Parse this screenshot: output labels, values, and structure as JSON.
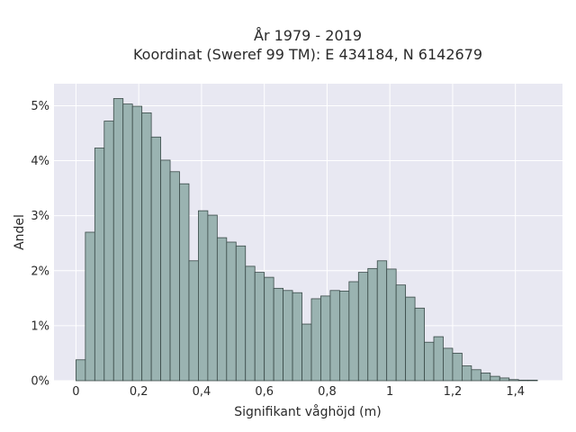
{
  "chart_data": {
    "type": "histogram",
    "title": "År 1979 - 2019",
    "subtitle": "Koordinat (Sweref 99 TM): E 434184, N 6142679",
    "xlabel": "Signifikant våghöjd (m)",
    "ylabel": "Andel",
    "xlim": [
      -0.07,
      1.55
    ],
    "ylim": [
      0,
      5.4
    ],
    "x_ticks": [
      0,
      0.2,
      0.4,
      0.6,
      0.8,
      1.0,
      1.2,
      1.4
    ],
    "x_tick_labels": [
      "0",
      "0,2",
      "0,4",
      "0,6",
      "0,8",
      "1",
      "1,2",
      "1,4"
    ],
    "y_ticks": [
      0,
      1,
      2,
      3,
      4,
      5
    ],
    "y_tick_labels": [
      "0%",
      "1%",
      "2%",
      "3%",
      "4%",
      "5%"
    ],
    "bin_width": 0.03,
    "bin_start": 0.0,
    "values": [
      0.38,
      2.7,
      4.23,
      4.72,
      5.13,
      5.03,
      4.99,
      4.87,
      4.43,
      4.01,
      3.8,
      3.58,
      2.18,
      3.09,
      3.01,
      2.6,
      2.52,
      2.45,
      2.08,
      1.97,
      1.88,
      1.68,
      1.64,
      1.6,
      1.03,
      1.49,
      1.54,
      1.64,
      1.63,
      1.8,
      1.97,
      2.04,
      2.18,
      2.03,
      1.74,
      1.52,
      1.32,
      0.7,
      0.8,
      0.59,
      0.5,
      0.27,
      0.2,
      0.14,
      0.08,
      0.05,
      0.02,
      0.01,
      0.01
    ],
    "colors": {
      "bar": "#9ab3b1",
      "bar_edge": "#3a4a48",
      "plot_bg": "#e8e8f2",
      "grid": "#ffffff"
    },
    "grid": true
  }
}
